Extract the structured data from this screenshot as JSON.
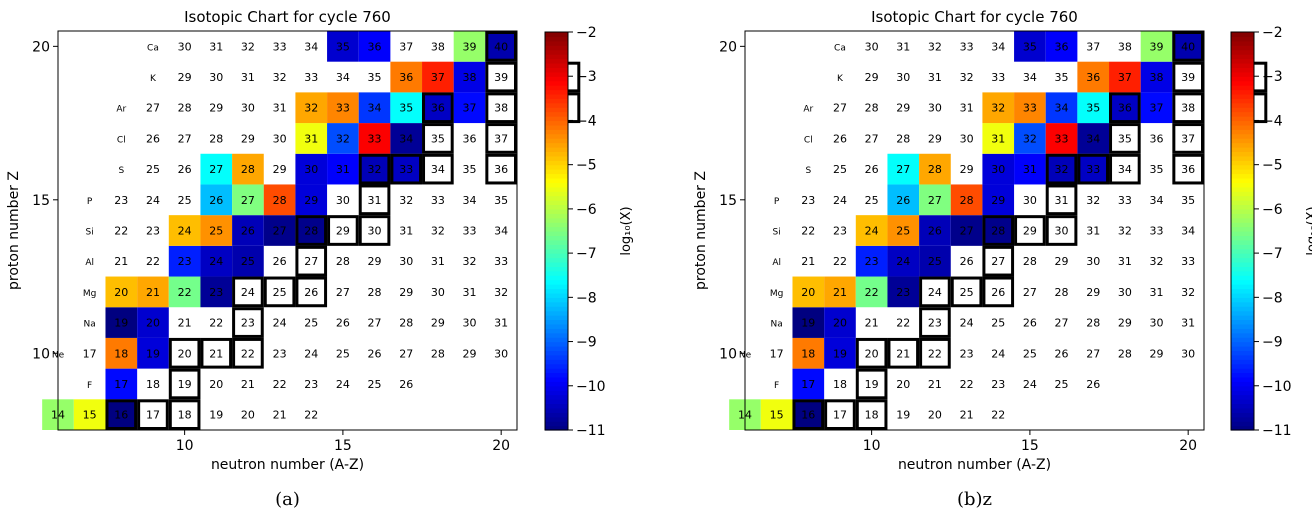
{
  "chart_data": [
    {
      "type": "heatmap",
      "title": "Isotopic Chart for cycle 760",
      "xlabel": "neutron number (A-Z)",
      "ylabel": "proton number Z",
      "xlim": [
        6,
        20.5
      ],
      "ylim": [
        7.5,
        20.5
      ],
      "xticks": [
        10,
        15,
        20
      ],
      "yticks": [
        10,
        15,
        20
      ],
      "colorbar": {
        "label": "log₁₀(X)",
        "min": -11,
        "max": -2,
        "ticks": [
          -2,
          -3,
          -4,
          -5,
          -6,
          -7,
          -8,
          -9,
          -10,
          -11
        ],
        "colormap": "jet"
      },
      "caption": "(a)",
      "elements": [
        {
          "Z": 8,
          "symbol": ""
        },
        {
          "Z": 9,
          "symbol": "F"
        },
        {
          "Z": 10,
          "symbol": "Ne"
        },
        {
          "Z": 11,
          "symbol": "Na"
        },
        {
          "Z": 12,
          "symbol": "Mg"
        },
        {
          "Z": 13,
          "symbol": "Al"
        },
        {
          "Z": 14,
          "symbol": "Si"
        },
        {
          "Z": 15,
          "symbol": "P"
        },
        {
          "Z": 16,
          "symbol": "S"
        },
        {
          "Z": 17,
          "symbol": "Cl"
        },
        {
          "Z": 18,
          "symbol": "Ar"
        },
        {
          "Z": 19,
          "symbol": "K"
        },
        {
          "Z": 20,
          "symbol": "Ca"
        }
      ],
      "rows": [
        {
          "Z": 8,
          "N": [
            6,
            7,
            8,
            9,
            10,
            11,
            12,
            13,
            14
          ],
          "logX": [
            -6.3,
            -5.5,
            -11,
            null,
            null,
            null,
            null,
            null,
            null
          ]
        },
        {
          "Z": 9,
          "N": [
            8,
            9,
            10,
            11,
            12,
            13,
            14,
            15,
            16,
            17
          ],
          "logX": [
            -9.8,
            null,
            null,
            null,
            null,
            null,
            null,
            null,
            null,
            null
          ]
        },
        {
          "Z": 10,
          "N": [
            7,
            8,
            9,
            10,
            11,
            12,
            13,
            14,
            15,
            16,
            17,
            18,
            19,
            20
          ],
          "logX": [
            null,
            -4.2,
            -10.2,
            null,
            null,
            null,
            null,
            null,
            null,
            null,
            null,
            null,
            null,
            null
          ]
        },
        {
          "Z": 11,
          "N": [
            8,
            9,
            10,
            11,
            12,
            13,
            14,
            15,
            16,
            17,
            18,
            19,
            20
          ],
          "logX": [
            -11,
            -10.3,
            null,
            null,
            null,
            null,
            null,
            null,
            null,
            null,
            null,
            null,
            null
          ]
        },
        {
          "Z": 12,
          "N": [
            8,
            9,
            10,
            11,
            12,
            13,
            14,
            15,
            16,
            17,
            18,
            19,
            20
          ],
          "logX": [
            -4.8,
            -4.6,
            -6.6,
            -10.8,
            null,
            null,
            null,
            null,
            null,
            null,
            null,
            null,
            null
          ]
        },
        {
          "Z": 13,
          "N": [
            8,
            9,
            10,
            11,
            12,
            13,
            14,
            15,
            16,
            17,
            18,
            19,
            20
          ],
          "logX": [
            null,
            null,
            -9.6,
            -10.4,
            -10.6,
            null,
            null,
            null,
            null,
            null,
            null,
            null,
            null
          ]
        },
        {
          "Z": 14,
          "N": [
            8,
            9,
            10,
            11,
            12,
            13,
            14,
            15,
            16,
            17,
            18,
            19,
            20
          ],
          "logX": [
            null,
            null,
            -4.8,
            -4.4,
            -10.5,
            -10.9,
            -10.9,
            null,
            null,
            null,
            null,
            null,
            null
          ]
        },
        {
          "Z": 15,
          "N": [
            8,
            9,
            10,
            11,
            12,
            13,
            14,
            15,
            16,
            17,
            18,
            19,
            20
          ],
          "logX": [
            null,
            null,
            null,
            -8.2,
            -6.5,
            -3.8,
            -10.2,
            null,
            null,
            null,
            null,
            null,
            null
          ]
        },
        {
          "Z": 16,
          "N": [
            9,
            10,
            11,
            12,
            13,
            14,
            15,
            16,
            17,
            18,
            19,
            20
          ],
          "logX": [
            null,
            null,
            -7.6,
            -4.6,
            null,
            -10.2,
            -9.9,
            -10.5,
            -10.4,
            null,
            null,
            null
          ]
        },
        {
          "Z": 17,
          "N": [
            9,
            10,
            11,
            12,
            13,
            14,
            15,
            16,
            17,
            18,
            19,
            20
          ],
          "logX": [
            null,
            null,
            null,
            null,
            null,
            -5.5,
            -9.2,
            -3.1,
            -10.8,
            null,
            null,
            null
          ]
        },
        {
          "Z": 18,
          "N": [
            9,
            10,
            11,
            12,
            13,
            14,
            15,
            16,
            17,
            18,
            19,
            20
          ],
          "logX": [
            null,
            null,
            null,
            null,
            null,
            -4.6,
            -4.3,
            -9.4,
            -7.6,
            -10.4,
            -9.8,
            null
          ]
        },
        {
          "Z": 19,
          "N": [
            10,
            11,
            12,
            13,
            14,
            15,
            16,
            17,
            18,
            19,
            20
          ],
          "logX": [
            null,
            null,
            null,
            null,
            null,
            null,
            null,
            -4.2,
            -3.4,
            -10.1,
            null
          ]
        },
        {
          "Z": 20,
          "N": [
            10,
            11,
            12,
            13,
            14,
            15,
            16,
            17,
            18,
            19,
            20
          ],
          "logX": [
            null,
            null,
            null,
            null,
            null,
            -10.3,
            -9.9,
            null,
            null,
            -6.3,
            -10.6
          ]
        }
      ],
      "stable_isotopes": [
        [
          8,
          8
        ],
        [
          8,
          9
        ],
        [
          8,
          10
        ],
        [
          9,
          10
        ],
        [
          10,
          10
        ],
        [
          10,
          11
        ],
        [
          10,
          12
        ],
        [
          11,
          12
        ],
        [
          12,
          12
        ],
        [
          12,
          13
        ],
        [
          12,
          14
        ],
        [
          13,
          14
        ],
        [
          14,
          14
        ],
        [
          14,
          15
        ],
        [
          14,
          16
        ],
        [
          15,
          16
        ],
        [
          16,
          16
        ],
        [
          16,
          17
        ],
        [
          16,
          18
        ],
        [
          16,
          20
        ],
        [
          17,
          18
        ],
        [
          17,
          20
        ],
        [
          18,
          18
        ],
        [
          18,
          20
        ],
        [
          18,
          22
        ],
        [
          19,
          20
        ],
        [
          19,
          22
        ],
        [
          20,
          20
        ]
      ]
    },
    {
      "type": "heatmap",
      "title": "Isotopic Chart for cycle 760",
      "xlabel": "neutron number (A-Z)",
      "ylabel": "proton number Z",
      "xlim": [
        6,
        20.5
      ],
      "ylim": [
        7.5,
        20.5
      ],
      "xticks": [
        10,
        15,
        20
      ],
      "yticks": [
        10,
        15,
        20
      ],
      "colorbar": {
        "label": "log₁₀(X)",
        "min": -11,
        "max": -2,
        "ticks": [
          -2,
          -3,
          -4,
          -5,
          -6,
          -7,
          -8,
          -9,
          -10,
          -11
        ],
        "colormap": "jet"
      },
      "caption": "(b)z",
      "same_data_as": 0
    }
  ]
}
